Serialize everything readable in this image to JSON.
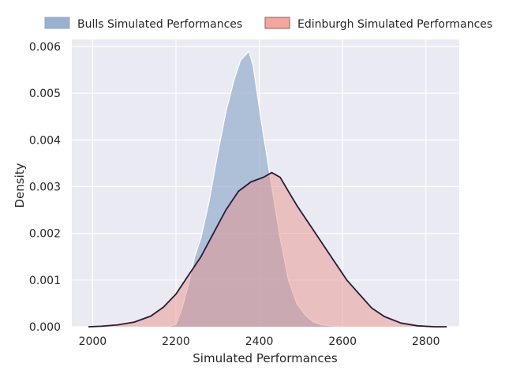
{
  "chart_data": {
    "type": "area",
    "xlabel": "Simulated Performances",
    "ylabel": "Density",
    "xlim": [
      1950,
      2880
    ],
    "ylim": [
      0,
      0.00615
    ],
    "x_ticks": [
      2000,
      2200,
      2400,
      2600,
      2800
    ],
    "x_tick_labels": [
      "2000",
      "2200",
      "2400",
      "2600",
      "2800"
    ],
    "y_ticks": [
      0.0,
      0.001,
      0.002,
      0.003,
      0.004,
      0.005,
      0.006
    ],
    "y_tick_labels": [
      "0.000",
      "0.001",
      "0.002",
      "0.003",
      "0.004",
      "0.005",
      "0.006"
    ],
    "grid": true,
    "legend_position": "top",
    "background": "#eaeaf2",
    "series": [
      {
        "name": "Bulls Simulated Performances",
        "fill": "#8ea7c9",
        "fill_opacity": 0.65,
        "stroke": "#ffffff",
        "x": [
          2180,
          2200,
          2215,
          2230,
          2245,
          2260,
          2280,
          2300,
          2320,
          2340,
          2355,
          2365,
          2375,
          2385,
          2395,
          2410,
          2430,
          2450,
          2470,
          2490,
          2510,
          2530,
          2550,
          2570,
          2590,
          2610
        ],
        "y": [
          0.0,
          5e-05,
          0.0004,
          0.0009,
          0.0015,
          0.0019,
          0.0027,
          0.0037,
          0.0046,
          0.0053,
          0.0057,
          0.0058,
          0.0059,
          0.0056,
          0.005,
          0.0041,
          0.003,
          0.0019,
          0.001,
          0.0005,
          0.00025,
          0.0001,
          4e-05,
          2e-05,
          1e-05,
          0.0
        ]
      },
      {
        "name": "Edinburgh Simulated Performances",
        "fill": "#e8948c",
        "fill_opacity": 0.5,
        "stroke": "#2a1a3a",
        "x": [
          1990,
          2020,
          2060,
          2100,
          2140,
          2170,
          2200,
          2230,
          2260,
          2290,
          2320,
          2350,
          2380,
          2410,
          2430,
          2450,
          2470,
          2490,
          2520,
          2550,
          2580,
          2610,
          2640,
          2670,
          2700,
          2740,
          2780,
          2820,
          2850
        ],
        "y": [
          0.0,
          1e-05,
          4e-05,
          0.0001,
          0.00023,
          0.00042,
          0.0007,
          0.0011,
          0.0015,
          0.002,
          0.0025,
          0.0029,
          0.0031,
          0.0032,
          0.0033,
          0.0032,
          0.0029,
          0.0026,
          0.0022,
          0.0018,
          0.0014,
          0.001,
          0.0007,
          0.0004,
          0.00022,
          8e-05,
          2e-05,
          0.0,
          0.0
        ]
      }
    ]
  }
}
